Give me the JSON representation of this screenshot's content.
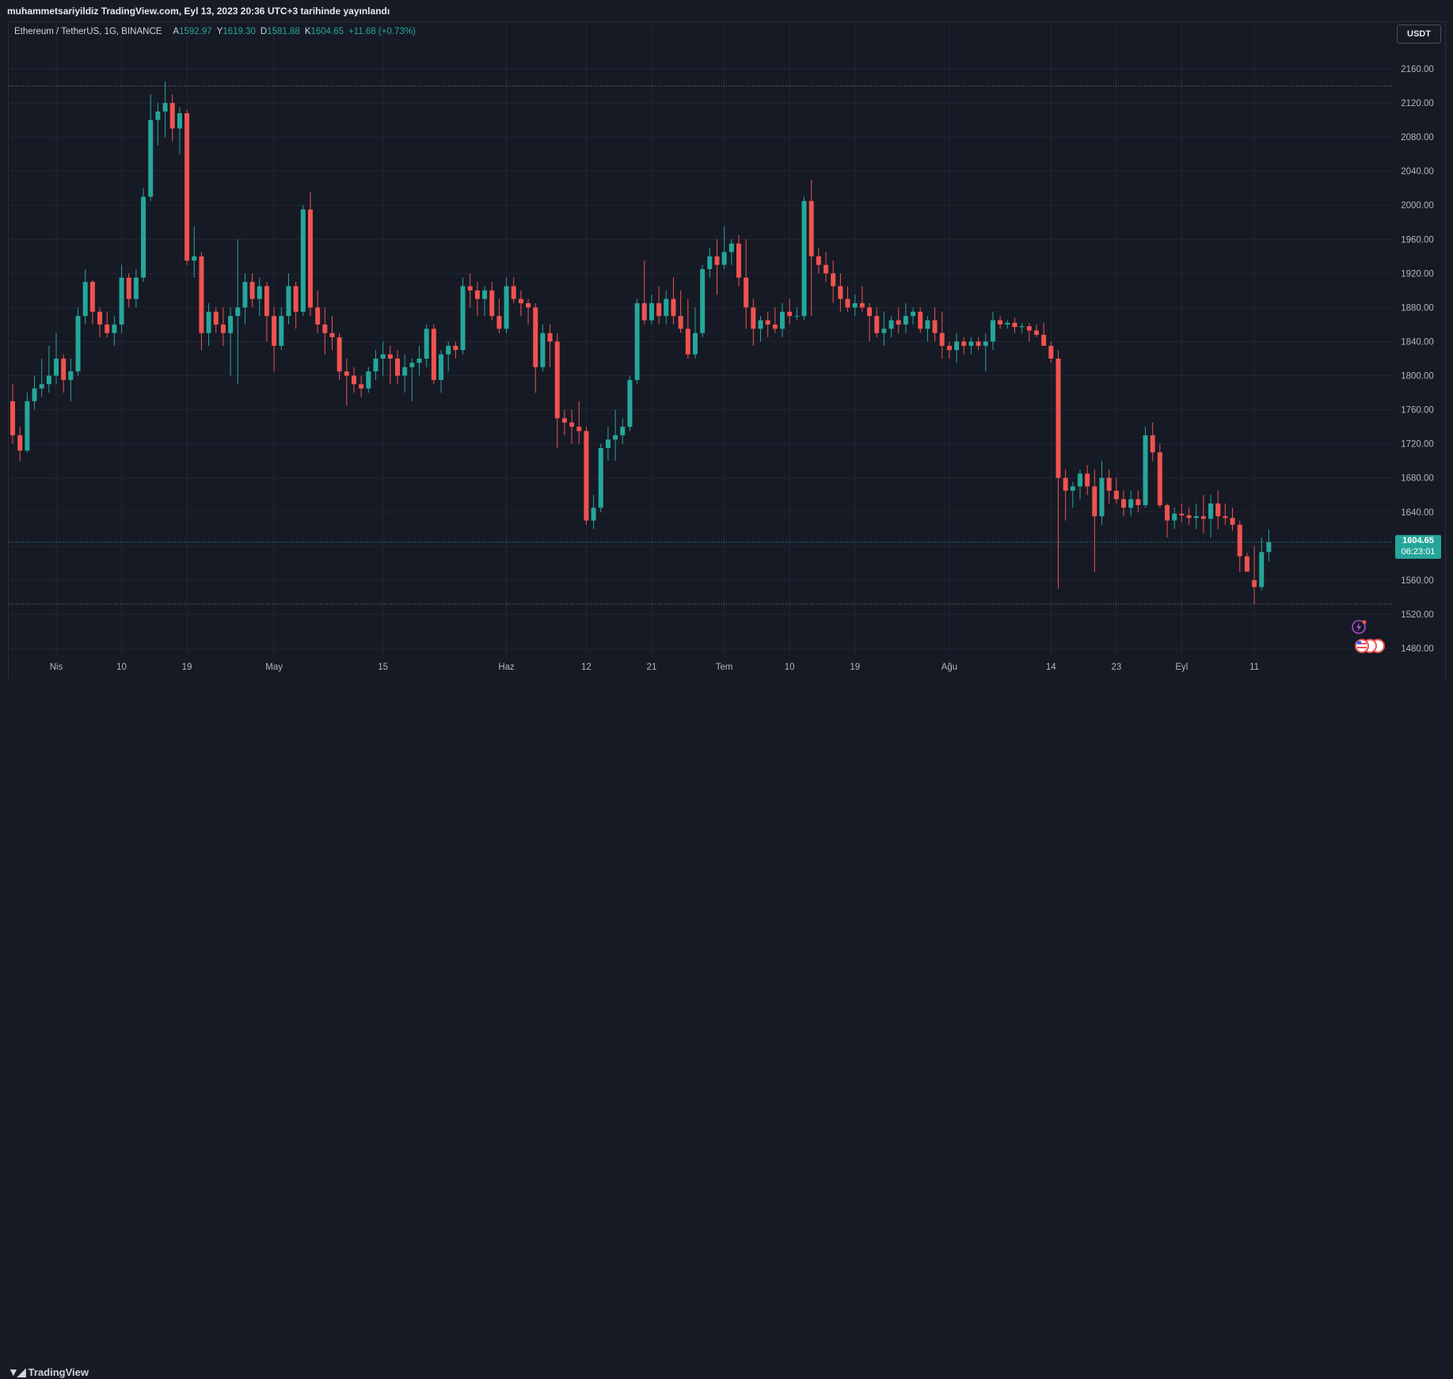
{
  "header": {
    "published_text": "muhammetsariyildiz TradingView.com, Eyl 13, 2023 20:36 UTC+3 tarihinde yayınlandı"
  },
  "legend": {
    "symbol": "Ethereum / TetherUS, 1G, BINANCE",
    "open_label": "A",
    "open": "1592.97",
    "high_label": "Y",
    "high": "1619.30",
    "low_label": "D",
    "low": "1581.88",
    "close_label": "K",
    "close": "1604.65",
    "change": "+11.68 (+0.73%)"
  },
  "currency_button": "USDT",
  "price_label": {
    "price": "1604.65",
    "countdown": "06:23:01"
  },
  "branding": {
    "name": "TradingView"
  },
  "colors": {
    "up": "#26a69a",
    "down": "#ef5350",
    "background": "#161a25",
    "grid": "#232632",
    "text": "#b2b5be",
    "price_tag": "#26a69a"
  },
  "chart_data": {
    "type": "candlestick",
    "symbol": "ETHUSDT",
    "interval": "1D",
    "ylim": [
      1460,
      2180
    ],
    "y_ticks": [
      1480,
      1520,
      1560,
      1600,
      1640,
      1680,
      1720,
      1760,
      1800,
      1840,
      1880,
      1920,
      1960,
      2000,
      2040,
      2080,
      2120,
      2160
    ],
    "x_labels": [
      {
        "index": 6,
        "label": "Nis"
      },
      {
        "index": 15,
        "label": "10"
      },
      {
        "index": 24,
        "label": "19"
      },
      {
        "index": 36,
        "label": "May"
      },
      {
        "index": 51,
        "label": "15"
      },
      {
        "index": 68,
        "label": "Haz"
      },
      {
        "index": 79,
        "label": "12"
      },
      {
        "index": 88,
        "label": "21"
      },
      {
        "index": 98,
        "label": "Tem"
      },
      {
        "index": 107,
        "label": "10"
      },
      {
        "index": 116,
        "label": "19"
      },
      {
        "index": 129,
        "label": "Ağu"
      },
      {
        "index": 143,
        "label": "14"
      },
      {
        "index": 152,
        "label": "23"
      },
      {
        "index": 161,
        "label": "Eyl"
      },
      {
        "index": 171,
        "label": "11"
      }
    ],
    "reference_lines": [
      2140,
      1532
    ],
    "current_price": 1604.65,
    "candles": [
      [
        1770,
        1790,
        1720,
        1730
      ],
      [
        1730,
        1740,
        1700,
        1712
      ],
      [
        1712,
        1780,
        1710,
        1770
      ],
      [
        1770,
        1800,
        1760,
        1785
      ],
      [
        1785,
        1820,
        1775,
        1790
      ],
      [
        1790,
        1835,
        1780,
        1800
      ],
      [
        1800,
        1850,
        1790,
        1820
      ],
      [
        1820,
        1825,
        1780,
        1795
      ],
      [
        1795,
        1820,
        1770,
        1805
      ],
      [
        1805,
        1880,
        1800,
        1870
      ],
      [
        1870,
        1925,
        1860,
        1910
      ],
      [
        1910,
        1912,
        1860,
        1875
      ],
      [
        1875,
        1880,
        1845,
        1860
      ],
      [
        1860,
        1875,
        1845,
        1850
      ],
      [
        1850,
        1870,
        1835,
        1860
      ],
      [
        1860,
        1930,
        1850,
        1915
      ],
      [
        1915,
        1920,
        1880,
        1890
      ],
      [
        1890,
        1925,
        1880,
        1915
      ],
      [
        1915,
        2020,
        1910,
        2010
      ],
      [
        2010,
        2130,
        2005,
        2100
      ],
      [
        2100,
        2120,
        2070,
        2110
      ],
      [
        2110,
        2145,
        2080,
        2120
      ],
      [
        2120,
        2130,
        2075,
        2090
      ],
      [
        2090,
        2115,
        2060,
        2108
      ],
      [
        2108,
        2112,
        1930,
        1935
      ],
      [
        1935,
        1975,
        1915,
        1940
      ],
      [
        1940,
        1945,
        1830,
        1850
      ],
      [
        1850,
        1885,
        1835,
        1875
      ],
      [
        1875,
        1880,
        1850,
        1860
      ],
      [
        1860,
        1880,
        1835,
        1850
      ],
      [
        1850,
        1880,
        1800,
        1870
      ],
      [
        1870,
        1960,
        1790,
        1880
      ],
      [
        1880,
        1920,
        1860,
        1910
      ],
      [
        1910,
        1920,
        1880,
        1890
      ],
      [
        1890,
        1915,
        1870,
        1905
      ],
      [
        1905,
        1910,
        1840,
        1870
      ],
      [
        1870,
        1880,
        1805,
        1835
      ],
      [
        1835,
        1880,
        1830,
        1870
      ],
      [
        1870,
        1920,
        1860,
        1905
      ],
      [
        1905,
        1910,
        1855,
        1875
      ],
      [
        1875,
        2000,
        1870,
        1995
      ],
      [
        1995,
        2015,
        1870,
        1880
      ],
      [
        1880,
        1900,
        1850,
        1860
      ],
      [
        1860,
        1880,
        1825,
        1850
      ],
      [
        1850,
        1870,
        1830,
        1845
      ],
      [
        1845,
        1850,
        1795,
        1805
      ],
      [
        1805,
        1820,
        1765,
        1800
      ],
      [
        1800,
        1810,
        1780,
        1790
      ],
      [
        1790,
        1800,
        1775,
        1785
      ],
      [
        1785,
        1810,
        1780,
        1805
      ],
      [
        1805,
        1830,
        1795,
        1820
      ],
      [
        1820,
        1840,
        1800,
        1825
      ],
      [
        1825,
        1835,
        1790,
        1820
      ],
      [
        1820,
        1830,
        1790,
        1800
      ],
      [
        1800,
        1825,
        1780,
        1810
      ],
      [
        1810,
        1820,
        1770,
        1815
      ],
      [
        1815,
        1835,
        1800,
        1820
      ],
      [
        1820,
        1860,
        1810,
        1855
      ],
      [
        1855,
        1860,
        1790,
        1795
      ],
      [
        1795,
        1830,
        1780,
        1825
      ],
      [
        1825,
        1840,
        1805,
        1835
      ],
      [
        1835,
        1840,
        1820,
        1830
      ],
      [
        1830,
        1915,
        1825,
        1905
      ],
      [
        1905,
        1920,
        1880,
        1900
      ],
      [
        1900,
        1910,
        1870,
        1890
      ],
      [
        1890,
        1905,
        1870,
        1900
      ],
      [
        1900,
        1910,
        1865,
        1870
      ],
      [
        1870,
        1890,
        1850,
        1855
      ],
      [
        1855,
        1915,
        1850,
        1905
      ],
      [
        1905,
        1915,
        1885,
        1890
      ],
      [
        1890,
        1900,
        1870,
        1885
      ],
      [
        1885,
        1890,
        1860,
        1880
      ],
      [
        1880,
        1885,
        1780,
        1810
      ],
      [
        1810,
        1860,
        1805,
        1850
      ],
      [
        1850,
        1860,
        1810,
        1840
      ],
      [
        1840,
        1850,
        1715,
        1750
      ],
      [
        1750,
        1760,
        1730,
        1745
      ],
      [
        1745,
        1760,
        1720,
        1740
      ],
      [
        1740,
        1770,
        1720,
        1735
      ],
      [
        1735,
        1740,
        1625,
        1630
      ],
      [
        1630,
        1660,
        1620,
        1645
      ],
      [
        1645,
        1720,
        1640,
        1715
      ],
      [
        1715,
        1740,
        1700,
        1725
      ],
      [
        1725,
        1760,
        1700,
        1730
      ],
      [
        1730,
        1750,
        1720,
        1740
      ],
      [
        1740,
        1800,
        1735,
        1795
      ],
      [
        1795,
        1890,
        1790,
        1885
      ],
      [
        1885,
        1935,
        1860,
        1865
      ],
      [
        1865,
        1895,
        1860,
        1885
      ],
      [
        1885,
        1905,
        1860,
        1870
      ],
      [
        1870,
        1900,
        1860,
        1890
      ],
      [
        1890,
        1915,
        1860,
        1870
      ],
      [
        1870,
        1900,
        1850,
        1855
      ],
      [
        1855,
        1890,
        1820,
        1825
      ],
      [
        1825,
        1880,
        1820,
        1850
      ],
      [
        1850,
        1930,
        1845,
        1925
      ],
      [
        1925,
        1950,
        1915,
        1940
      ],
      [
        1940,
        1960,
        1895,
        1930
      ],
      [
        1930,
        1975,
        1925,
        1945
      ],
      [
        1945,
        1960,
        1930,
        1955
      ],
      [
        1955,
        1965,
        1905,
        1915
      ],
      [
        1915,
        1960,
        1855,
        1880
      ],
      [
        1880,
        1890,
        1835,
        1855
      ],
      [
        1855,
        1870,
        1840,
        1865
      ],
      [
        1865,
        1875,
        1845,
        1860
      ],
      [
        1860,
        1880,
        1850,
        1855
      ],
      [
        1855,
        1885,
        1845,
        1875
      ],
      [
        1875,
        1890,
        1860,
        1870
      ],
      [
        1870,
        1880,
        1865,
        1870
      ],
      [
        1870,
        2010,
        1865,
        2005
      ],
      [
        2005,
        2030,
        1870,
        1940
      ],
      [
        1940,
        1950,
        1920,
        1930
      ],
      [
        1930,
        1945,
        1910,
        1920
      ],
      [
        1920,
        1935,
        1885,
        1905
      ],
      [
        1905,
        1920,
        1875,
        1890
      ],
      [
        1890,
        1905,
        1875,
        1880
      ],
      [
        1880,
        1895,
        1870,
        1885
      ],
      [
        1885,
        1905,
        1875,
        1880
      ],
      [
        1880,
        1885,
        1840,
        1870
      ],
      [
        1870,
        1880,
        1845,
        1850
      ],
      [
        1850,
        1875,
        1835,
        1855
      ],
      [
        1855,
        1870,
        1845,
        1865
      ],
      [
        1865,
        1880,
        1850,
        1860
      ],
      [
        1860,
        1885,
        1850,
        1870
      ],
      [
        1870,
        1880,
        1860,
        1875
      ],
      [
        1875,
        1880,
        1850,
        1855
      ],
      [
        1855,
        1870,
        1840,
        1865
      ],
      [
        1865,
        1880,
        1840,
        1850
      ],
      [
        1850,
        1875,
        1820,
        1835
      ],
      [
        1835,
        1840,
        1820,
        1830
      ],
      [
        1830,
        1850,
        1815,
        1840
      ],
      [
        1840,
        1845,
        1825,
        1835
      ],
      [
        1835,
        1845,
        1825,
        1840
      ],
      [
        1840,
        1845,
        1830,
        1835
      ],
      [
        1835,
        1850,
        1805,
        1840
      ],
      [
        1840,
        1875,
        1830,
        1865
      ],
      [
        1865,
        1870,
        1855,
        1860
      ],
      [
        1860,
        1865,
        1855,
        1862
      ],
      [
        1862,
        1868,
        1850,
        1857
      ],
      [
        1857,
        1862,
        1850,
        1858
      ],
      [
        1858,
        1862,
        1840,
        1853
      ],
      [
        1853,
        1860,
        1845,
        1848
      ],
      [
        1848,
        1862,
        1838,
        1835
      ],
      [
        1835,
        1840,
        1815,
        1820
      ],
      [
        1820,
        1830,
        1550,
        1680
      ],
      [
        1680,
        1690,
        1630,
        1665
      ],
      [
        1665,
        1675,
        1645,
        1670
      ],
      [
        1670,
        1690,
        1655,
        1685
      ],
      [
        1685,
        1695,
        1660,
        1670
      ],
      [
        1670,
        1690,
        1570,
        1635
      ],
      [
        1635,
        1700,
        1625,
        1680
      ],
      [
        1680,
        1690,
        1650,
        1665
      ],
      [
        1665,
        1680,
        1650,
        1655
      ],
      [
        1655,
        1665,
        1635,
        1645
      ],
      [
        1645,
        1665,
        1635,
        1655
      ],
      [
        1655,
        1665,
        1640,
        1648
      ],
      [
        1648,
        1740,
        1645,
        1730
      ],
      [
        1730,
        1745,
        1700,
        1710
      ],
      [
        1710,
        1720,
        1645,
        1648
      ],
      [
        1648,
        1650,
        1610,
        1630
      ],
      [
        1630,
        1645,
        1620,
        1638
      ],
      [
        1638,
        1650,
        1628,
        1636
      ],
      [
        1636,
        1645,
        1625,
        1633
      ],
      [
        1633,
        1650,
        1620,
        1635
      ],
      [
        1635,
        1660,
        1615,
        1632
      ],
      [
        1632,
        1660,
        1610,
        1650
      ],
      [
        1650,
        1665,
        1620,
        1635
      ],
      [
        1635,
        1650,
        1625,
        1633
      ],
      [
        1633,
        1645,
        1618,
        1625
      ],
      [
        1625,
        1630,
        1570,
        1588
      ],
      [
        1588,
        1592,
        1575,
        1570
      ],
      [
        1560,
        1600,
        1532,
        1552
      ],
      [
        1552,
        1610,
        1548,
        1593
      ],
      [
        1593,
        1619.3,
        1581.88,
        1604.65
      ]
    ]
  }
}
